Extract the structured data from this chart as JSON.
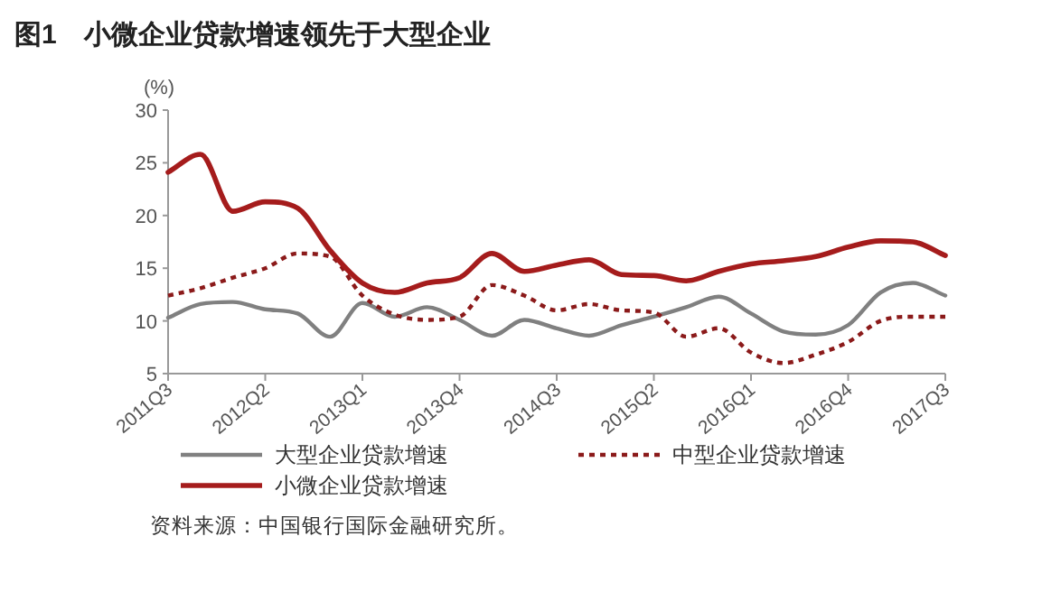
{
  "chart_data": {
    "type": "line",
    "title": "图1　小微企业贷款增速领先于大型企业",
    "ylabel": "(%)",
    "categories": [
      "2011Q3",
      null,
      null,
      "2012Q2",
      null,
      null,
      "2013Q1",
      null,
      null,
      "2013Q4",
      null,
      null,
      "2014Q3",
      null,
      null,
      "2015Q2",
      null,
      null,
      "2016Q1",
      null,
      null,
      "2016Q4",
      null,
      null,
      "2017Q3"
    ],
    "series": [
      {
        "name": "大型企业贷款增速",
        "color": "#808080",
        "line_style": "solid",
        "values": [
          10.3,
          11.6,
          11.8,
          11.1,
          10.7,
          8.5,
          11.7,
          10.4,
          11.3,
          10.1,
          8.6,
          10.1,
          9.3,
          8.6,
          9.6,
          10.4,
          11.3,
          12.3,
          10.7,
          9.0,
          8.7,
          9.6,
          12.7,
          13.6,
          12.4
        ]
      },
      {
        "name": "中型企业贷款增速",
        "color": "#8b1a1a",
        "line_style": "dotted",
        "values": [
          12.4,
          13.1,
          14.1,
          15.0,
          16.4,
          16.1,
          12.4,
          10.6,
          10.1,
          10.4,
          13.4,
          12.4,
          11.0,
          11.6,
          11.0,
          10.8,
          8.5,
          9.3,
          7.0,
          6.0,
          6.8,
          8.0,
          10.0,
          10.4,
          10.4
        ]
      },
      {
        "name": "小微企业贷款增速",
        "color": "#a51c1c",
        "line_style": "solid",
        "values": [
          24.1,
          25.8,
          20.4,
          21.3,
          20.7,
          16.7,
          13.6,
          12.7,
          13.6,
          14.1,
          16.4,
          14.7,
          15.3,
          15.8,
          14.4,
          14.3,
          13.8,
          14.7,
          15.4,
          15.7,
          16.1,
          17.0,
          17.6,
          17.5,
          16.2
        ]
      }
    ],
    "ylim": [
      5,
      30
    ],
    "yticks": [
      5,
      10,
      15,
      20,
      25,
      30
    ],
    "grid": false,
    "legend": "bottom",
    "annotations": [
      "资料来源：中国银行国际金融研究所。"
    ]
  }
}
